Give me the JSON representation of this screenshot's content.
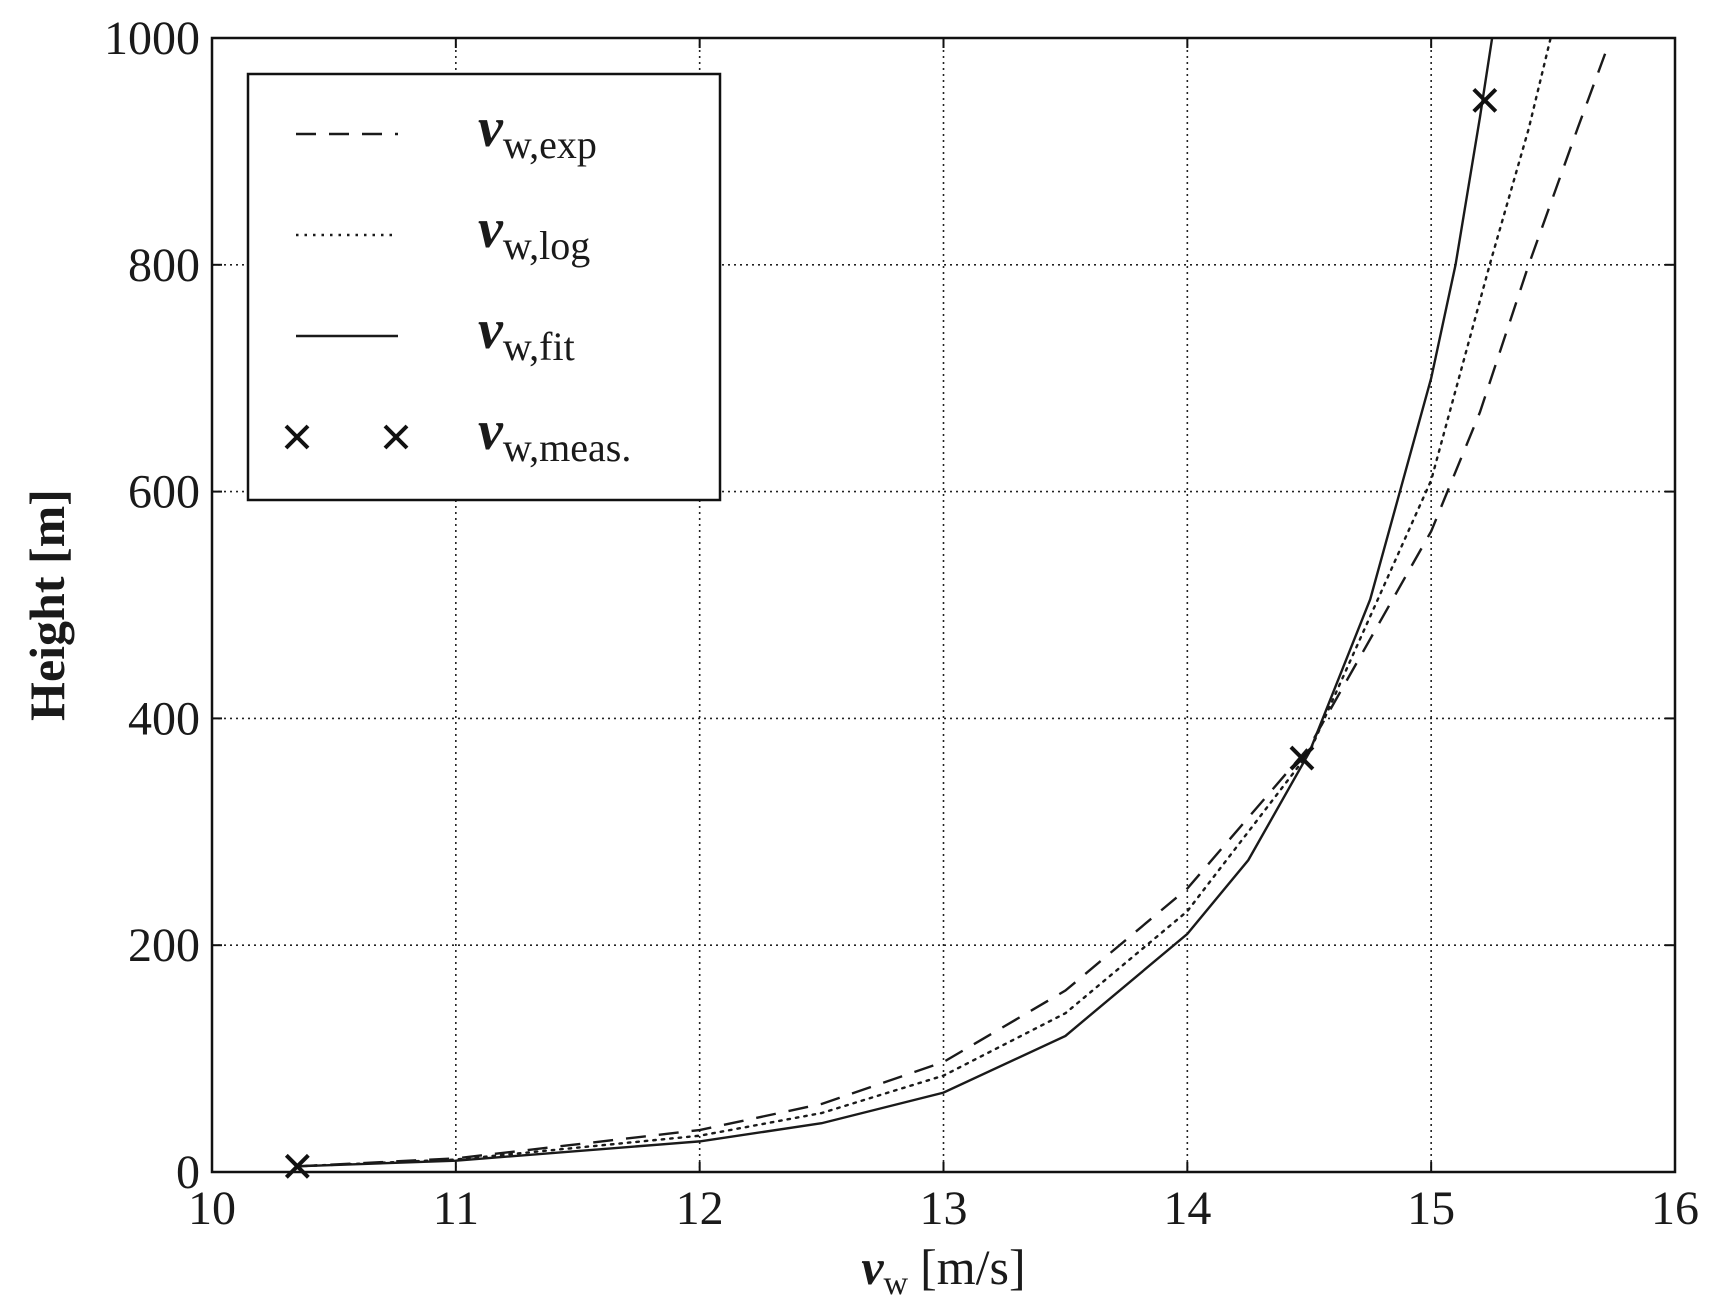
{
  "chart_data": {
    "type": "line",
    "xlabel": "v",
    "xlabel_sub": "w",
    "xlabel_unit": "[m/s]",
    "ylabel": "Height [m]",
    "xlim": [
      10,
      16
    ],
    "xticks": [
      10,
      11,
      12,
      13,
      14,
      15,
      16
    ],
    "ylim": [
      0,
      1000
    ],
    "yticks": [
      0,
      200,
      400,
      600,
      800,
      1000
    ],
    "grid": true,
    "legend": "upper left",
    "series": [
      {
        "name": "v",
        "name_sub": "w,exp",
        "color": "#1a1a1a",
        "style": "dashed",
        "x": [
          10.35,
          11,
          12,
          12.5,
          13,
          13.5,
          14,
          14.5,
          15,
          15.2,
          15.4,
          15.6,
          15.72
        ],
        "y": [
          5,
          12,
          37,
          60,
          97,
          160,
          250,
          375,
          565,
          670,
          800,
          920,
          990
        ]
      },
      {
        "name": "v",
        "name_sub": "w,log",
        "color": "#1a1a1a",
        "style": "dotted",
        "x": [
          10.35,
          11,
          12,
          12.5,
          13,
          13.5,
          14,
          14.5,
          15,
          15.24,
          15.4,
          15.49
        ],
        "y": [
          5,
          11,
          32,
          52,
          85,
          140,
          230,
          370,
          610,
          800,
          920,
          1000
        ]
      },
      {
        "name": "v",
        "name_sub": "w,fit",
        "color": "#1a1a1a",
        "style": "solid",
        "x": [
          10.35,
          11,
          12,
          12.5,
          13,
          13.5,
          14,
          14.25,
          14.5,
          14.75,
          15,
          15.1,
          15.2,
          15.25
        ],
        "y": [
          5,
          10,
          27,
          43,
          70,
          120,
          210,
          275,
          370,
          505,
          700,
          800,
          930,
          1000
        ]
      },
      {
        "name": "v",
        "name_sub": "w,meas.",
        "color": "#1a1a1a",
        "style": "marker",
        "x": [
          10.35,
          14.47,
          15.22
        ],
        "y": [
          5,
          365,
          945
        ]
      }
    ]
  }
}
